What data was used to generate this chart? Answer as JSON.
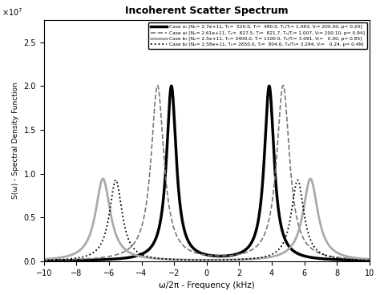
{
  "title": "Incoherent Scatter Spectrum",
  "xlabel": "ω/2π - Frequency (kHz)",
  "ylabel": "S(ω) - Spectral Density Function",
  "xlim": [
    -10,
    10
  ],
  "ylim": [
    0,
    27500000.0
  ],
  "cases": [
    {
      "Ne": 270000000000.0,
      "Te": 520.0,
      "Ti": 480.0,
      "Vi": 200.0,
      "p": 0.2,
      "color": "black",
      "lw": 2.5,
      "ls": "-"
    },
    {
      "Ne": 261000000000.0,
      "Te": 827.5,
      "Ti": 821.7,
      "Vi": 200.1,
      "p": 0.94,
      "color": "#777777",
      "lw": 1.2,
      "ls": "--"
    },
    {
      "Ne": 250000000000.0,
      "Te": 3400.0,
      "Ti": 1100.0,
      "Vi": 0.0,
      "p": 0.85,
      "color": "#aaaaaa",
      "lw": 2.0,
      "ls": "-"
    },
    {
      "Ne": 258000000000.0,
      "Te": 2650.0,
      "Ti": 804.6,
      "Vi": 0.24,
      "p": 0.49,
      "color": "black",
      "lw": 1.3,
      "ls": ":"
    }
  ],
  "legend_texts": [
    "Case a₁ [Nₑ= 2.7e+11, Tₑ=  520.0, Tᵢ=  480.0, Tₑ/Tᵢ= 1.083, Vᵢ= 200.00, p= 0.20]",
    "Case a₂ [Nₑ= 2.61e+11, Tₑ=  827.5, Tᵢ=  821.7, Tₑ/Tᵢ= 1.007, Vᵢ= 200.10, p= 0.94]",
    "Case b₁ [Nₑ= 2.5e+11, Tₑ= 3400.0, Tᵢ= 1100.0, Tₑ/Tᵢ= 3.091, Vᵢ=   0.00, p= 0.85]",
    "Case b₂ [Nₑ= 2.58e+11, Tₑ= 2650.0, Tᵢ=  804.6, Tₑ/Tᵢ= 3.294, Vᵢ=   0.24, p= 0.49]"
  ],
  "n_points": 3000,
  "freq_min": -10,
  "freq_max": 10
}
